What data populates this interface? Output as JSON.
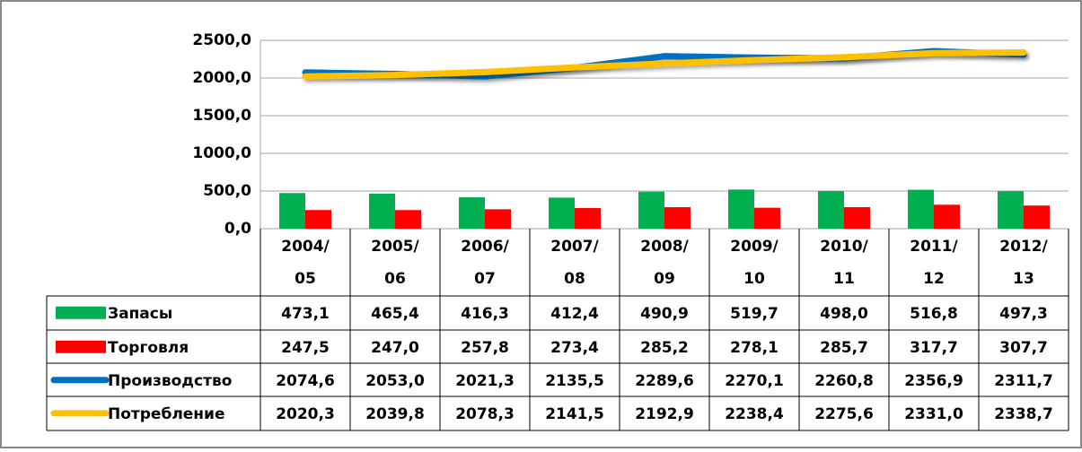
{
  "chart_data": {
    "type": "bar_line_table",
    "categories": [
      "2004/05",
      "2005/06",
      "2006/07",
      "2007/08",
      "2008/09",
      "2009/10",
      "2010/11",
      "2011/12",
      "2012/13"
    ],
    "series": [
      {
        "name": "Запасы",
        "type": "bar",
        "color": "#00b050",
        "values": [
          473.1,
          465.4,
          416.3,
          412.4,
          490.9,
          519.7,
          498.0,
          516.8,
          497.3
        ],
        "value_labels": [
          "473,1",
          "465,4",
          "416,3",
          "412,4",
          "490,9",
          "519,7",
          "498,0",
          "516,8",
          "497,3"
        ]
      },
      {
        "name": "Торговля",
        "type": "bar",
        "color": "#ff0000",
        "values": [
          247.5,
          247.0,
          257.8,
          273.4,
          285.2,
          278.1,
          285.7,
          317.7,
          307.7
        ],
        "value_labels": [
          "247,5",
          "247,0",
          "257,8",
          "273,4",
          "285,2",
          "278,1",
          "285,7",
          "317,7",
          "307,7"
        ]
      },
      {
        "name": "Производство",
        "type": "line",
        "color": "#0070c0",
        "values": [
          2074.6,
          2053.0,
          2021.3,
          2135.5,
          2289.6,
          2270.1,
          2260.8,
          2356.9,
          2311.7
        ],
        "value_labels": [
          "2074,6",
          "2053,0",
          "2021,3",
          "2135,5",
          "2289,6",
          "2270,1",
          "2260,8",
          "2356,9",
          "2311,7"
        ]
      },
      {
        "name": "Потребление",
        "type": "line",
        "color": "#ffc000",
        "values": [
          2020.3,
          2039.8,
          2078.3,
          2141.5,
          2192.9,
          2238.4,
          2275.6,
          2331.0,
          2338.7
        ],
        "value_labels": [
          "2020,3",
          "2039,8",
          "2078,3",
          "2141,5",
          "2192,9",
          "2238,4",
          "2275,6",
          "2331,0",
          "2338,7"
        ]
      }
    ],
    "ylim": [
      0,
      2500
    ],
    "yticks": [
      {
        "value": 0,
        "label": "0,0"
      },
      {
        "value": 500,
        "label": "500,0"
      },
      {
        "value": 1000,
        "label": "1000,0"
      },
      {
        "value": 1500,
        "label": "1500,0"
      },
      {
        "value": 2000,
        "label": "2000,0"
      },
      {
        "value": 2500,
        "label": "2500,0"
      }
    ],
    "grid": true
  }
}
